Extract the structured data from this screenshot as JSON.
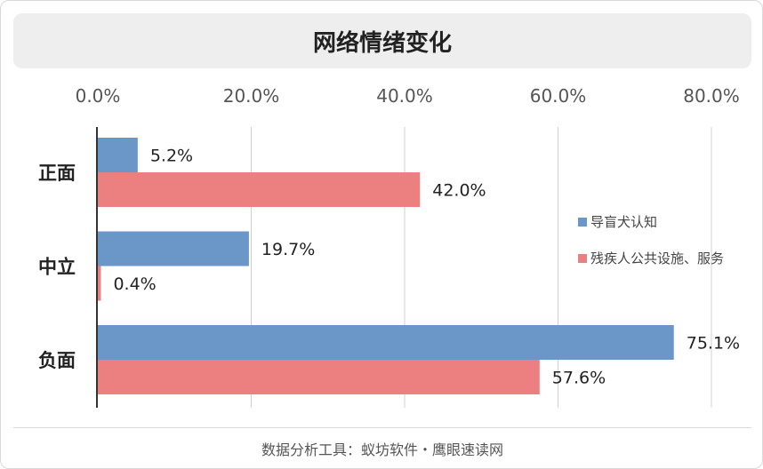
{
  "chart_data": {
    "type": "bar",
    "orientation": "horizontal",
    "title": "网络情绪变化",
    "categories": [
      "正面",
      "中立",
      "负面"
    ],
    "series": [
      {
        "name": "导盲犬认知",
        "color": "#6a96c8",
        "values": [
          5.2,
          19.7,
          75.1
        ],
        "labels": [
          "5.2%",
          "19.7%",
          "75.1%"
        ]
      },
      {
        "name": "残疾人公共设施、服务",
        "color": "#ec7f7f",
        "values": [
          42.0,
          0.4,
          57.6
        ],
        "labels": [
          "42.0%",
          "0.4%",
          "57.6%"
        ]
      }
    ],
    "xlim": [
      0,
      80
    ],
    "xticks": [
      0,
      20,
      40,
      60,
      80
    ],
    "xtick_labels": [
      "0.0%",
      "20.0%",
      "40.0%",
      "60.0%",
      "80.0%"
    ],
    "xaxis_position": "top",
    "grid": true,
    "legend_position": "right"
  },
  "footer": {
    "text": "数据分析工具：蚁坊软件・鹰眼速读网"
  }
}
